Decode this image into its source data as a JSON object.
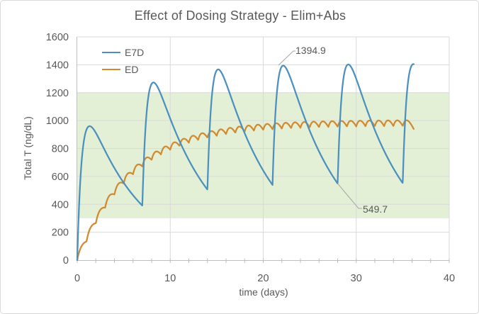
{
  "chart_data": {
    "type": "line",
    "title": "Effect of Dosing Strategy - Elim+Abs",
    "xlabel": "time (days)",
    "ylabel": "Total T (ng/dL)",
    "xlim": [
      0,
      40
    ],
    "ylim": [
      0,
      1600
    ],
    "x_ticks": [
      0,
      10,
      20,
      30,
      40
    ],
    "x_minor_tick_step": 2,
    "y_ticks": [
      0,
      200,
      400,
      600,
      800,
      1000,
      1200,
      1400,
      1600
    ],
    "grid": true,
    "legend_position": "top-left-inside",
    "reference_band": {
      "ymin": 300,
      "ymax": 1200,
      "color": "#e4f0d6"
    },
    "series": [
      {
        "name": "E7D",
        "color": "#4b90be",
        "t_end": 36.2,
        "model": {
          "type": "bateman_sum",
          "dose_times": [
            0,
            7,
            14,
            21,
            28,
            35
          ],
          "amplitude": 1329,
          "ka": 2.0,
          "ke": 0.175
        },
        "key_points": {
          "peak_times": [
            1.34,
            8.3,
            15.2,
            22.17,
            29.15
          ],
          "peak_values": [
            960,
            1271,
            1367,
            1394.9,
            1403
          ],
          "trough_times": [
            7,
            14,
            21,
            28,
            35
          ],
          "trough_values": [
            390,
            505,
            539,
            549.7,
            552
          ],
          "end_value": 1405
        }
      },
      {
        "name": "ED",
        "color": "#d28a30",
        "t_end": 36.2,
        "model": {
          "type": "bateman_sum",
          "dose_start": 0,
          "dose_end": 35,
          "dose_interval": 1,
          "amplitude": 189.9,
          "ka": 2.0,
          "ke": 0.175
        },
        "key_points": {
          "plateau_mean": 990,
          "ss_peak": 1003,
          "ss_trough": 962,
          "end_value": 938
        }
      }
    ],
    "annotations": [
      {
        "text": "1394.9",
        "series": "E7D",
        "point": {
          "t": 22.17,
          "value": 1394.9
        }
      },
      {
        "text": "549.7",
        "series": "E7D",
        "point": {
          "t": 28,
          "value": 549.7
        }
      }
    ],
    "style": {
      "text_color": "#595959",
      "grid_color": "#d9d9d9",
      "axis_color": "#bfbfbf",
      "leader_color": "#a6a6a6",
      "plot_bg": "#ffffff"
    }
  }
}
